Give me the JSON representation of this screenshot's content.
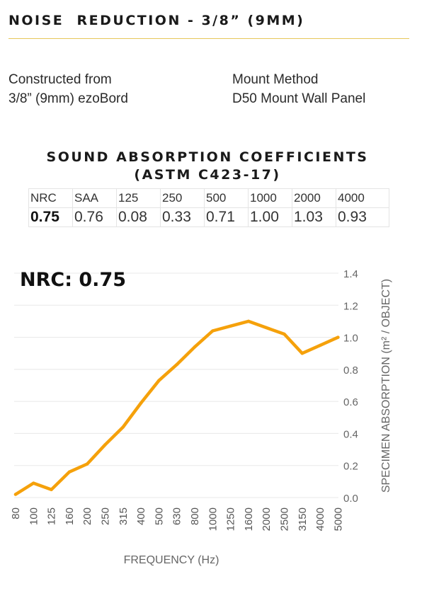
{
  "header": {
    "title": "NOISE  REDUCTION - 3/8” (9MM)"
  },
  "construction": {
    "line1": "Constructed from",
    "line2": "3/8” (9mm) ezoBord"
  },
  "mount": {
    "line1": "Mount Method",
    "line2": "D50 Mount Wall Panel"
  },
  "coefficients": {
    "title_line1": "SOUND ABSORPTION COEFFICIENTS",
    "title_line2": "(ASTM C423-17)",
    "headers": [
      "NRC",
      "SAA",
      "125",
      "250",
      "500",
      "1000",
      "2000",
      "4000"
    ],
    "values": [
      "0.75",
      "0.76",
      "0.08",
      "0.33",
      "0.71",
      "1.00",
      "1.03",
      "0.93"
    ]
  },
  "chart_label": "NRC: 0.75",
  "colors": {
    "line": "#f5a10b",
    "grid": "#e8e8e8",
    "accent_rule": "#e6c75a"
  },
  "chart_data": {
    "type": "line",
    "title": "",
    "xlabel": "FREQUENCY (Hz)",
    "ylabel": "SPECIMEN ABSORPTION (m² / OBJECT)",
    "categories": [
      "80",
      "100",
      "125",
      "160",
      "200",
      "250",
      "315",
      "400",
      "500",
      "630",
      "800",
      "1000",
      "1250",
      "1600",
      "2000",
      "2500",
      "3150",
      "4000",
      "5000"
    ],
    "series": [
      {
        "values": [
          0.02,
          0.09,
          0.05,
          0.16,
          0.21,
          0.33,
          0.44,
          0.59,
          0.73,
          0.83,
          0.94,
          1.04,
          1.07,
          1.1,
          1.06,
          1.02,
          0.9,
          0.95,
          1.0
        ]
      }
    ],
    "yticks": [
      "0.0",
      "0.2",
      "0.4",
      "0.6",
      "0.8",
      "1.0",
      "1.2",
      "1.4"
    ],
    "ylim": [
      0,
      1.4
    ],
    "y_axis_side": "right",
    "grid": "horizontal"
  }
}
